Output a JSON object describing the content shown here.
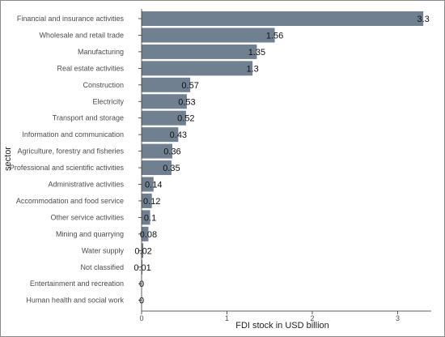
{
  "chart_data": {
    "type": "bar",
    "orientation": "horizontal",
    "xlabel": "FDI stock in USD billion",
    "ylabel": "sector",
    "xlim": [
      0,
      3.3
    ],
    "x_ticks": [
      0,
      1,
      2,
      3
    ],
    "grid": false,
    "bar_color": "#708090",
    "categories": [
      "Financial and insurance activities",
      "Wholesale and retail trade",
      "Manufacturing",
      "Real estate activities",
      "Construction",
      "Electricity",
      "Transport and storage",
      "Information and communication",
      "Agriculture, forestry and fisheries",
      "Professional and scientific activities",
      "Administrative  activities",
      "Accommodation and food service",
      "Other service activities",
      "Mining and quarrying",
      "Water supply",
      "Not classified",
      "Entertainment and recreation",
      "Human health and social work"
    ],
    "values": [
      3.3,
      1.56,
      1.35,
      1.3,
      0.57,
      0.53,
      0.52,
      0.43,
      0.36,
      0.35,
      0.14,
      0.12,
      0.1,
      0.08,
      0.02,
      0.01,
      0,
      0
    ],
    "value_labels": [
      "3.3",
      "1.56",
      "1.35",
      "1.3",
      "0.57",
      "0.53",
      "0.52",
      "0.43",
      "0.36",
      "0.35",
      "0.14",
      "0.12",
      "0.1",
      "0.08",
      "0.02",
      "0.01",
      "0",
      "0"
    ]
  }
}
